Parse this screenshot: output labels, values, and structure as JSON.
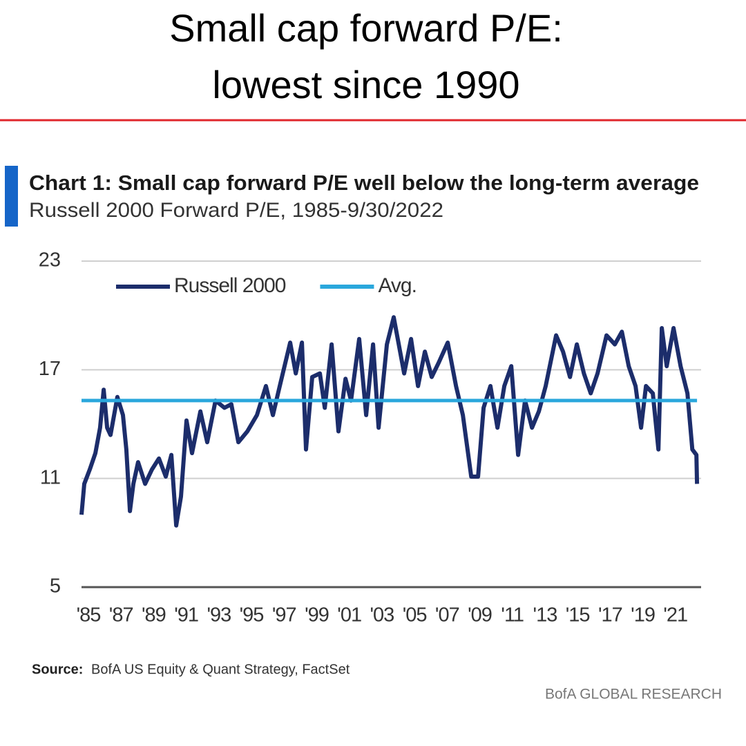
{
  "header": {
    "lines": [
      "Small cap forward P/E:",
      "lowest since 1990"
    ]
  },
  "chart_data": {
    "type": "line",
    "title": "Chart 1: Small cap forward P/E well below the long-term average",
    "subtitle": "Russell 2000 Forward P/E, 1985-9/30/2022",
    "source_label": "Source:",
    "source": "BofA US Equity  & Quant  Strategy, FactSet",
    "credit": "BofA GLOBAL RESEARCH",
    "xlim": [
      1985,
      2023
    ],
    "xticks": [
      {
        "value": 1985,
        "label": "'85"
      },
      {
        "value": 1987,
        "label": "'87"
      },
      {
        "value": 1989,
        "label": "'89"
      },
      {
        "value": 1991,
        "label": "'91"
      },
      {
        "value": 1993,
        "label": "'93"
      },
      {
        "value": 1995,
        "label": "'95"
      },
      {
        "value": 1997,
        "label": "'97"
      },
      {
        "value": 1999,
        "label": "'99"
      },
      {
        "value": 2001,
        "label": "'01"
      },
      {
        "value": 2003,
        "label": "'03"
      },
      {
        "value": 2005,
        "label": "'05"
      },
      {
        "value": 2007,
        "label": "'07"
      },
      {
        "value": 2009,
        "label": "'09"
      },
      {
        "value": 2011,
        "label": "'11"
      },
      {
        "value": 2013,
        "label": "'13"
      },
      {
        "value": 2015,
        "label": "'15"
      },
      {
        "value": 2017,
        "label": "'17"
      },
      {
        "value": 2019,
        "label": "'19"
      },
      {
        "value": 2021,
        "label": "'21"
      }
    ],
    "ylim": [
      5,
      23
    ],
    "yticks": [
      5,
      11,
      17,
      23
    ],
    "grid": true,
    "legend": "top-left",
    "series": [
      {
        "name": "Russell 2000",
        "color": "#1c2d6b",
        "x": [
          1985.0,
          1985.17,
          1985.51,
          1985.85,
          1986.14,
          1986.36,
          1986.57,
          1986.78,
          1987.2,
          1987.54,
          1987.75,
          1987.97,
          1988.18,
          1988.47,
          1988.9,
          1989.32,
          1989.75,
          1990.17,
          1990.51,
          1990.81,
          1991.1,
          1991.44,
          1991.78,
          1992.29,
          1992.71,
          1993.22,
          1993.77,
          1994.19,
          1994.62,
          1995.17,
          1995.76,
          1996.31,
          1996.74,
          1997.16,
          1997.8,
          1998.14,
          1998.52,
          1998.77,
          1999.15,
          1999.62,
          1999.92,
          2000.34,
          2000.76,
          2001.19,
          2001.53,
          2002.03,
          2002.46,
          2002.88,
          2003.22,
          2003.73,
          2004.15,
          2004.79,
          2005.21,
          2005.64,
          2006.06,
          2006.48,
          2006.91,
          2007.46,
          2007.97,
          2008.39,
          2008.9,
          2009.32,
          2009.66,
          2010.08,
          2010.51,
          2010.93,
          2011.36,
          2011.78,
          2012.2,
          2012.63,
          2013.05,
          2013.47,
          2014.11,
          2014.53,
          2014.96,
          2015.38,
          2015.81,
          2016.23,
          2016.65,
          2017.2,
          2017.71,
          2018.14,
          2018.56,
          2018.98,
          2019.32,
          2019.62,
          2020.04,
          2020.38,
          2020.59,
          2020.89,
          2021.31,
          2021.74,
          2022.16,
          2022.46,
          2022.71,
          2022.75
        ],
        "values": [
          9.0,
          10.7,
          11.5,
          12.4,
          13.8,
          15.9,
          13.8,
          13.4,
          15.5,
          14.5,
          12.6,
          9.2,
          10.7,
          11.9,
          10.7,
          11.5,
          12.1,
          11.1,
          12.3,
          8.4,
          10.0,
          14.2,
          12.4,
          14.7,
          13.0,
          15.3,
          14.9,
          15.1,
          13.0,
          13.6,
          14.5,
          16.1,
          14.5,
          16.1,
          18.5,
          16.8,
          18.5,
          12.6,
          16.6,
          16.8,
          14.9,
          18.4,
          13.6,
          16.5,
          15.3,
          18.7,
          14.5,
          18.4,
          13.8,
          18.4,
          19.9,
          16.8,
          18.7,
          16.1,
          18.0,
          16.6,
          17.4,
          18.5,
          16.1,
          14.5,
          11.1,
          11.1,
          14.9,
          16.1,
          13.8,
          16.1,
          17.2,
          12.3,
          15.3,
          13.8,
          14.7,
          16.1,
          18.9,
          18.0,
          16.6,
          18.4,
          16.8,
          15.7,
          16.8,
          18.9,
          18.4,
          19.1,
          17.2,
          16.1,
          13.8,
          16.1,
          15.7,
          12.6,
          19.3,
          17.2,
          19.3,
          17.2,
          15.7,
          12.6,
          12.3,
          10.7
        ]
      },
      {
        "name": "Avg.",
        "color": "#2aa7dc",
        "x": [
          1985,
          2022.75
        ],
        "values": [
          15.3,
          15.3
        ]
      }
    ]
  }
}
